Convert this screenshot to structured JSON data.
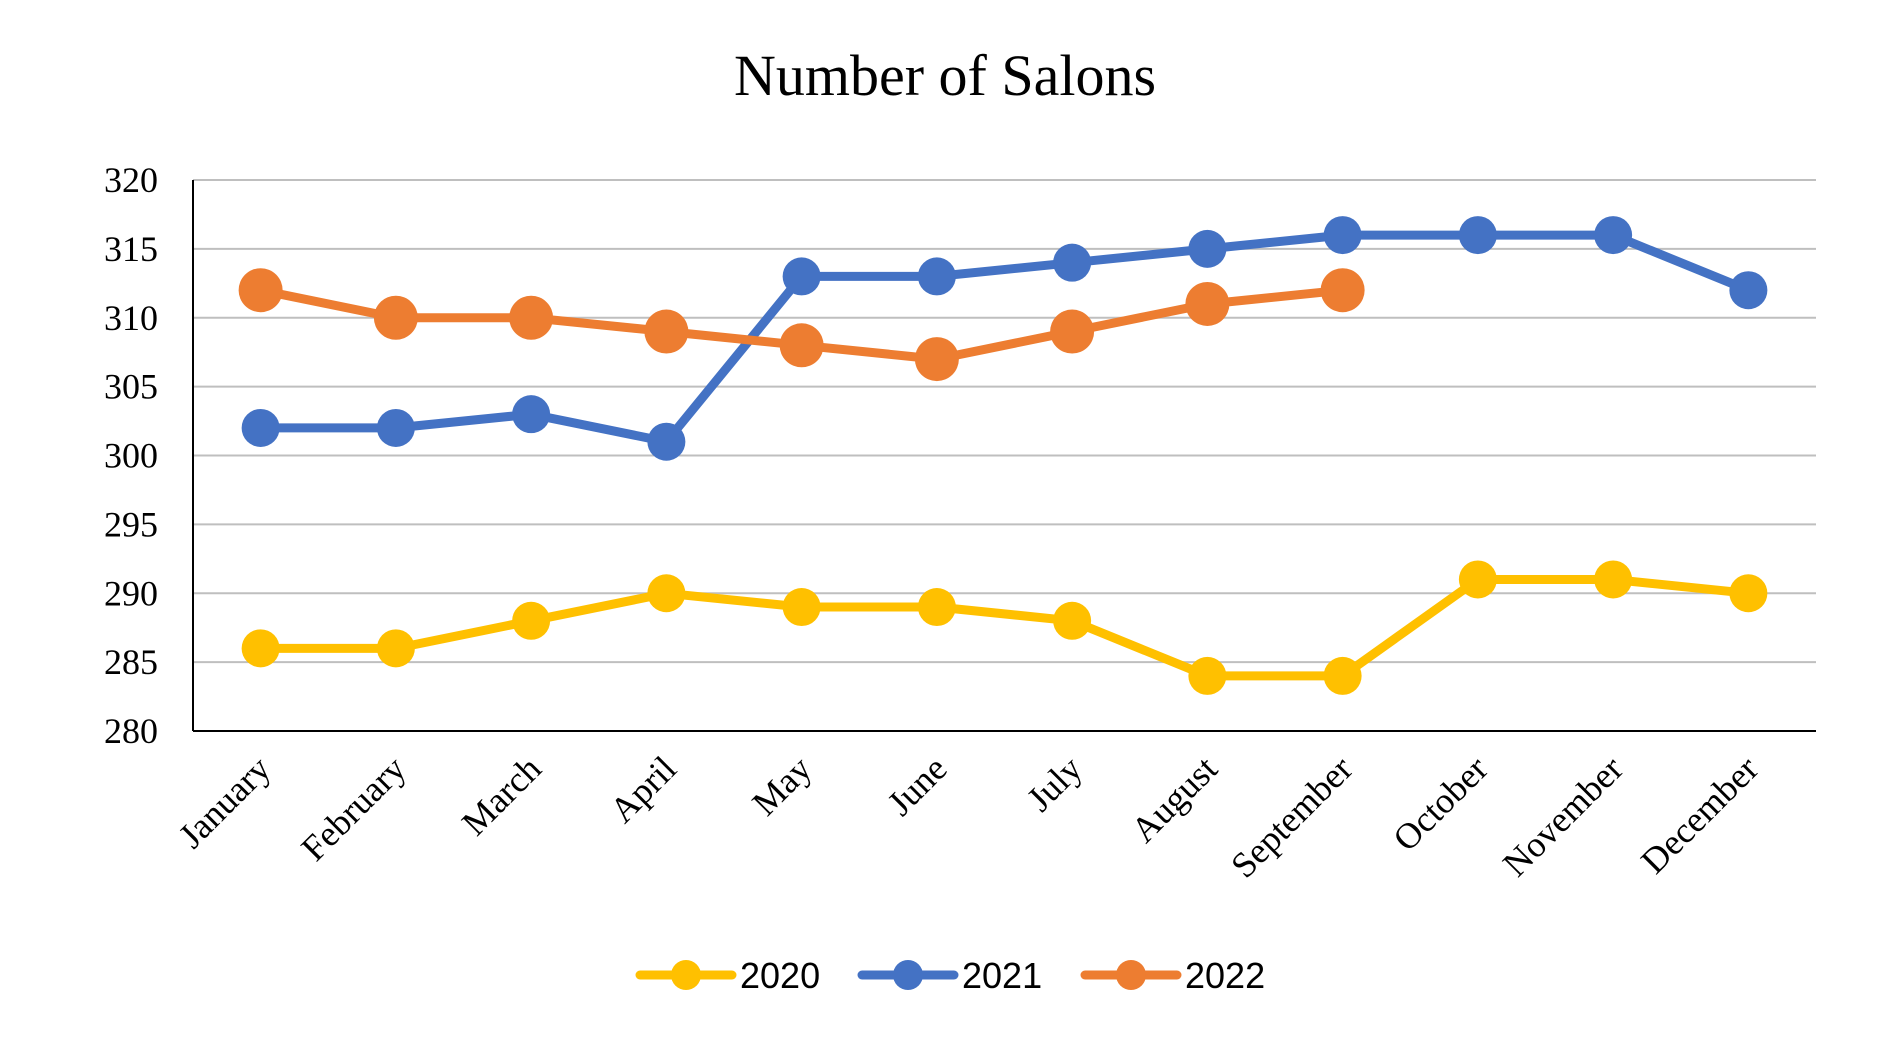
{
  "chart_data": {
    "type": "line",
    "title": "Number of Salons",
    "xlabel": "",
    "ylabel": "",
    "categories": [
      "January",
      "February",
      "March",
      "April",
      "May",
      "June",
      "July",
      "August",
      "September",
      "October",
      "November",
      "December"
    ],
    "ylim": [
      280,
      320
    ],
    "yticks": [
      "280",
      "285",
      "290",
      "295",
      "300",
      "305",
      "310",
      "315",
      "320"
    ],
    "grid": true,
    "legend_position": "bottom",
    "series": [
      {
        "name": "2020",
        "color": "#FFC000",
        "values": [
          286,
          286,
          288,
          290,
          289,
          289,
          288,
          284,
          284,
          291,
          291,
          290
        ]
      },
      {
        "name": "2021",
        "color": "#4472C4",
        "values": [
          302,
          302,
          303,
          301,
          313,
          313,
          314,
          315,
          316,
          316,
          316,
          312
        ]
      },
      {
        "name": "2022",
        "color": "#ED7D31",
        "values": [
          312,
          310,
          310,
          309,
          308,
          307,
          309,
          311,
          312,
          null,
          null,
          null
        ]
      }
    ]
  }
}
